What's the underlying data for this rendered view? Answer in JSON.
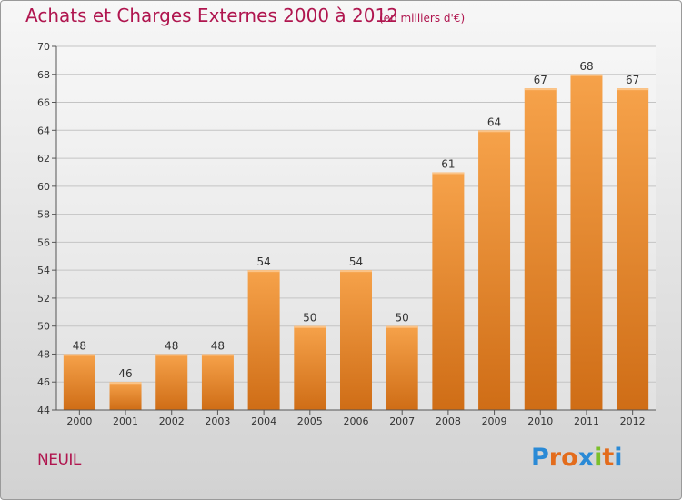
{
  "header": {
    "title": "Achats et Charges Externes 2000 à 2012",
    "subtitle": "(en milliers d'€)"
  },
  "footer": {
    "commune": "NEUIL",
    "logo_letters": [
      "P",
      "r",
      "o",
      "x",
      "i",
      "t",
      "i"
    ],
    "logo_colors": [
      "#2a8ad6",
      "#e36c1c",
      "#e36c1c",
      "#2a8ad6",
      "#7bbf2a",
      "#e36c1c",
      "#2a8ad6"
    ]
  },
  "chart_data": {
    "type": "bar",
    "title": "Achats et Charges Externes 2000 à 2012",
    "categories": [
      "2000",
      "2001",
      "2002",
      "2003",
      "2004",
      "2005",
      "2006",
      "2007",
      "2008",
      "2009",
      "2010",
      "2011",
      "2012"
    ],
    "values": [
      48,
      46,
      48,
      48,
      54,
      50,
      54,
      50,
      61,
      64,
      67,
      68,
      67
    ],
    "ylim": [
      44,
      70
    ],
    "yticks": [
      44,
      46,
      48,
      50,
      52,
      54,
      56,
      58,
      60,
      62,
      64,
      66,
      68,
      70
    ],
    "grid": true,
    "bar_color": "#f08a2a"
  }
}
